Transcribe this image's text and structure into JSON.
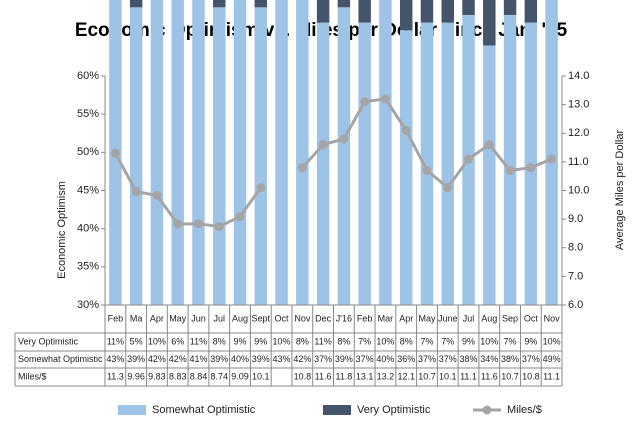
{
  "chart_data": {
    "type": "bar",
    "title": "Economic Optimism vs. Miles per Dollar Since Jan. '15",
    "ylabel": "Economic Optimism",
    "y2label": "Average Miles per Dollar",
    "categories": [
      "Feb",
      "Ma",
      "Apr",
      "May",
      "Jun",
      "Jul",
      "Aug",
      "Sept",
      "Oct",
      "Nov",
      "Dec",
      "J'16",
      "Feb",
      "Mar",
      "Apr",
      "May",
      "June",
      "Jul",
      "Aug",
      "Sep",
      "Oct",
      "Nov"
    ],
    "series": [
      {
        "name": "Somewhat Optimistic",
        "color": "#9dc3e6",
        "values": [
          43,
          39,
          42,
          42,
          41,
          39,
          40,
          39,
          43,
          42,
          37,
          39,
          37,
          40,
          36,
          37,
          37,
          38,
          34,
          38,
          37,
          49
        ],
        "value_labels": [
          "43%",
          "39%",
          "42%",
          "42%",
          "41%",
          "39%",
          "40%",
          "39%",
          "43%",
          "42%",
          "37%",
          "39%",
          "37%",
          "40%",
          "36%",
          "37%",
          "37%",
          "38%",
          "34%",
          "38%",
          "37%",
          "49%"
        ]
      },
      {
        "name": "Very Optimistic",
        "color": "#44546a",
        "values": [
          11,
          5,
          10,
          6,
          11,
          8,
          9,
          9,
          10,
          8,
          11,
          8,
          7,
          10,
          8,
          7,
          7,
          9,
          10,
          7,
          9,
          10
        ],
        "value_labels": [
          "11%",
          "5%",
          "10%",
          "6%",
          "11%",
          "8%",
          "9%",
          "9%",
          "10%",
          "8%",
          "11%",
          "8%",
          "7%",
          "10%",
          "8%",
          "7%",
          "7%",
          "9%",
          "10%",
          "7%",
          "9%",
          "10%"
        ]
      },
      {
        "name": "Miles/$",
        "color": "#a5a5a5",
        "axis": "y2",
        "type": "line",
        "values": [
          11.3,
          9.96,
          9.83,
          8.83,
          8.84,
          8.74,
          9.09,
          10.1,
          null,
          10.8,
          11.6,
          11.8,
          13.1,
          13.2,
          12.1,
          10.7,
          10.1,
          11.1,
          11.6,
          10.7,
          10.8,
          11.1
        ]
      }
    ],
    "ylim": [
      30,
      60
    ],
    "yticks": [
      {
        "value": 30,
        "label": "30%"
      },
      {
        "value": 35,
        "label": "35%"
      },
      {
        "value": 40,
        "label": "40%"
      },
      {
        "value": 45,
        "label": "45%"
      },
      {
        "value": 50,
        "label": "50%"
      },
      {
        "value": 55,
        "label": "55%"
      },
      {
        "value": 60,
        "label": "60%"
      }
    ],
    "y2lim": [
      6,
      14
    ],
    "y2ticks": [
      {
        "value": 6,
        "label": "6.0"
      },
      {
        "value": 7,
        "label": "7.0"
      },
      {
        "value": 8,
        "label": "8.0"
      },
      {
        "value": 9,
        "label": "9.0"
      },
      {
        "value": 10,
        "label": "10.0"
      },
      {
        "value": 11,
        "label": "11.0"
      },
      {
        "value": 12,
        "label": "12.0"
      },
      {
        "value": 13,
        "label": "13.0"
      },
      {
        "value": 14,
        "label": "14.0"
      }
    ],
    "data_table": true,
    "legend": "bottom"
  }
}
